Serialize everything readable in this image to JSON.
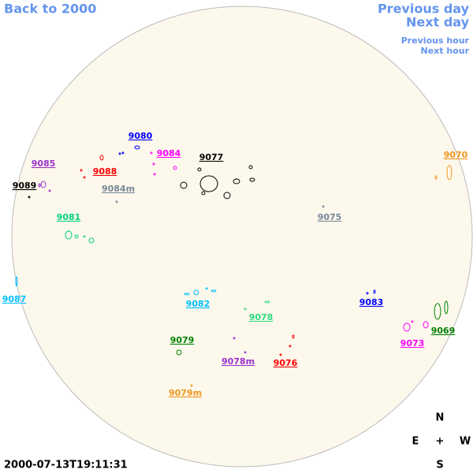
{
  "navigation": {
    "back": "Back to 2000",
    "previous_day": "Previous day",
    "next_day": "Next day",
    "previous_hour": "Previous hour",
    "next_hour": "Next hour"
  },
  "regions": [
    {
      "label": "9080",
      "color": "#0000ff"
    },
    {
      "label": "9084",
      "color": "#ff00ff"
    },
    {
      "label": "9077",
      "color": "#000000"
    },
    {
      "label": "9085",
      "color": "#9932cc"
    },
    {
      "label": "9088",
      "color": "#ff0000"
    },
    {
      "label": "9089",
      "color": "#000000"
    },
    {
      "label": "9084m",
      "color": "#778899"
    },
    {
      "label": "9070",
      "color": "#f0961e"
    },
    {
      "label": "9075",
      "color": "#778899"
    },
    {
      "label": "9081",
      "color": "#00d27a"
    },
    {
      "label": "9087",
      "color": "#00bfff"
    },
    {
      "label": "9082",
      "color": "#00bfff"
    },
    {
      "label": "9083",
      "color": "#0000ff"
    },
    {
      "label": "9078",
      "color": "#2edc82"
    },
    {
      "label": "9073",
      "color": "#ff00ff"
    },
    {
      "label": "9069",
      "color": "#008000"
    },
    {
      "label": "9079",
      "color": "#008000"
    },
    {
      "label": "9078m",
      "color": "#9932cc"
    },
    {
      "label": "9076",
      "color": "#ff0000"
    },
    {
      "label": "9079m",
      "color": "#f0961e"
    }
  ],
  "compass": {
    "north": "N",
    "south": "S",
    "east": "E",
    "west": "W",
    "center": "+"
  },
  "timestamp": "2000-07-13T19:11:31"
}
